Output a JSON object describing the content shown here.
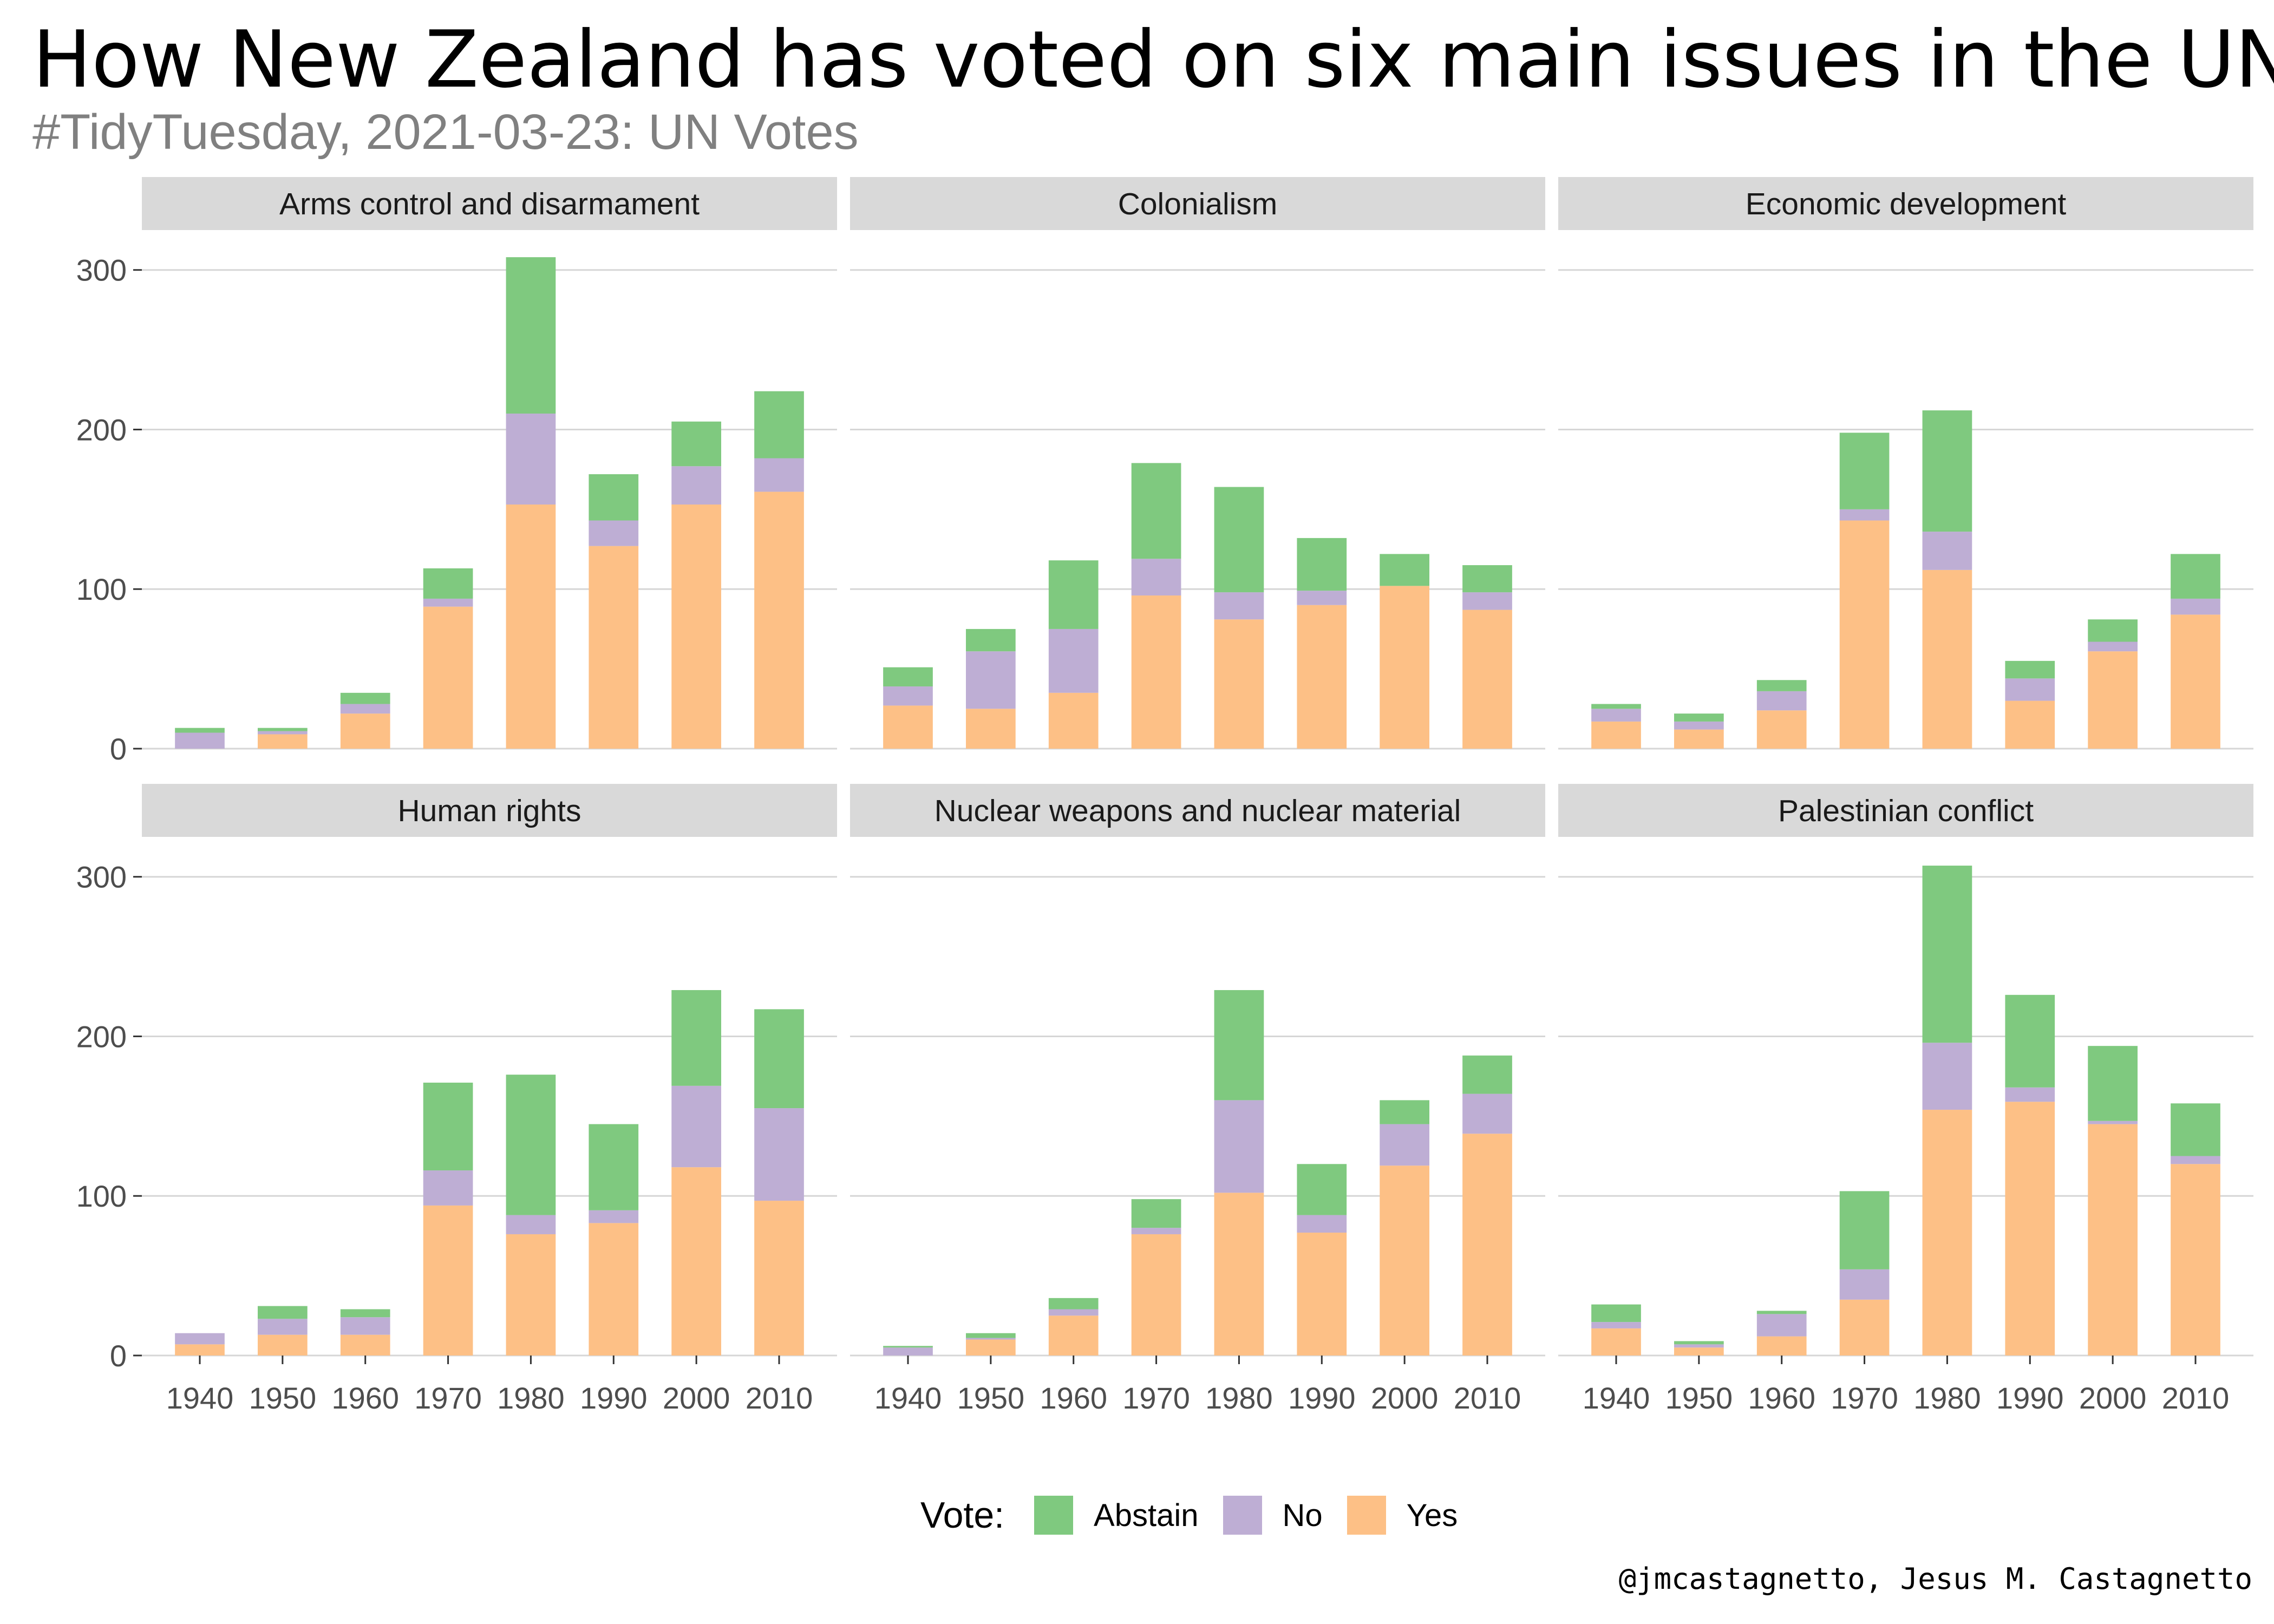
{
  "title": "How New Zealand has voted on six main issues in the UN",
  "subtitle": "#TidyTuesday, 2021-03-23: UN Votes",
  "caption": "@jmcastagnetto, Jesus M. Castagnetto",
  "legend": {
    "title": "Vote:",
    "items": [
      {
        "label": "Abstain",
        "color": "#7FC97F"
      },
      {
        "label": "No",
        "color": "#BEAED4"
      },
      {
        "label": "Yes",
        "color": "#FDC086"
      }
    ]
  },
  "chart_data": {
    "type": "bar",
    "stacked": true,
    "facets_layout": "2 rows x 3 columns",
    "categories": [
      "1940",
      "1950",
      "1960",
      "1970",
      "1980",
      "1990",
      "2000",
      "2010"
    ],
    "y_ticks": [
      0,
      100,
      200,
      300
    ],
    "ylim": [
      0,
      310
    ],
    "series_order": [
      "Yes",
      "No",
      "Abstain"
    ],
    "facets": [
      {
        "title": "Arms control and disarmament",
        "series": [
          {
            "name": "Yes",
            "values": [
              0,
              9,
              22,
              89,
              153,
              127,
              153,
              161
            ]
          },
          {
            "name": "No",
            "values": [
              10,
              2,
              6,
              5,
              57,
              16,
              24,
              21
            ]
          },
          {
            "name": "Abstain",
            "values": [
              3,
              2,
              7,
              19,
              98,
              29,
              28,
              42
            ]
          }
        ]
      },
      {
        "title": "Colonialism",
        "series": [
          {
            "name": "Yes",
            "values": [
              27,
              25,
              35,
              96,
              81,
              90,
              102,
              87
            ]
          },
          {
            "name": "No",
            "values": [
              12,
              36,
              40,
              23,
              17,
              9,
              0,
              11
            ]
          },
          {
            "name": "Abstain",
            "values": [
              12,
              14,
              43,
              60,
              66,
              33,
              20,
              17
            ]
          }
        ]
      },
      {
        "title": "Economic development",
        "series": [
          {
            "name": "Yes",
            "values": [
              17,
              12,
              24,
              143,
              112,
              30,
              61,
              84
            ]
          },
          {
            "name": "No",
            "values": [
              8,
              5,
              12,
              7,
              24,
              14,
              6,
              10
            ]
          },
          {
            "name": "Abstain",
            "values": [
              3,
              5,
              7,
              48,
              76,
              11,
              14,
              28
            ]
          }
        ]
      },
      {
        "title": "Human rights",
        "series": [
          {
            "name": "Yes",
            "values": [
              7,
              13,
              13,
              94,
              76,
              83,
              118,
              97
            ]
          },
          {
            "name": "No",
            "values": [
              7,
              10,
              11,
              22,
              12,
              8,
              51,
              58
            ]
          },
          {
            "name": "Abstain",
            "values": [
              0,
              8,
              5,
              55,
              88,
              54,
              60,
              62
            ]
          }
        ]
      },
      {
        "title": "Nuclear weapons and nuclear material",
        "series": [
          {
            "name": "Yes",
            "values": [
              0,
              10,
              25,
              76,
              102,
              77,
              119,
              139
            ]
          },
          {
            "name": "No",
            "values": [
              5,
              1,
              4,
              4,
              58,
              11,
              26,
              25
            ]
          },
          {
            "name": "Abstain",
            "values": [
              1,
              3,
              7,
              18,
              69,
              32,
              15,
              24
            ]
          }
        ]
      },
      {
        "title": "Palestinian conflict",
        "series": [
          {
            "name": "Yes",
            "values": [
              17,
              5,
              12,
              35,
              154,
              159,
              145,
              120
            ]
          },
          {
            "name": "No",
            "values": [
              4,
              2,
              14,
              19,
              42,
              9,
              2,
              5
            ]
          },
          {
            "name": "Abstain",
            "values": [
              11,
              2,
              2,
              49,
              111,
              58,
              47,
              33
            ]
          }
        ]
      }
    ]
  }
}
